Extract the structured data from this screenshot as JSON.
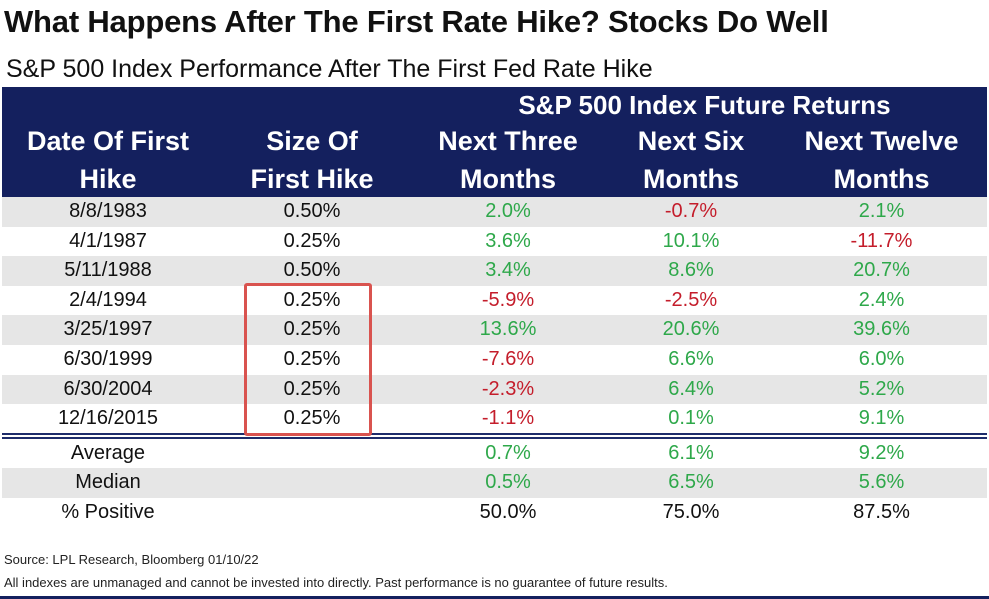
{
  "title": "What Happens After The First Rate Hike? Stocks Do Well",
  "subtitle": "S&P 500 Index Performance After The First Fed Rate Hike",
  "header": {
    "group_label": "S&P 500 Index Future Returns",
    "columns": [
      {
        "line1": "Date Of First",
        "line2": "Hike"
      },
      {
        "line1": "Size Of",
        "line2": "First Hike"
      },
      {
        "line1": "Next Three",
        "line2": "Months"
      },
      {
        "line1": "Next Six",
        "line2": "Months"
      },
      {
        "line1": "Next Twelve",
        "line2": "Months"
      }
    ]
  },
  "colors": {
    "positive": "#2ea84a",
    "negative": "#c41d2b",
    "neutral": "#111111",
    "header_bg": "#14205e",
    "highlight": "#d9534f"
  },
  "chart_data": {
    "type": "table",
    "title": "What Happens After The First Rate Hike? Stocks Do Well",
    "subtitle": "S&P 500 Index Performance After The First Fed Rate Hike",
    "rows": [
      {
        "date": "8/8/1983",
        "size": "0.50%",
        "three": "2.0%",
        "six": "-0.7%",
        "twelve": "2.1%"
      },
      {
        "date": "4/1/1987",
        "size": "0.25%",
        "three": "3.6%",
        "six": "10.1%",
        "twelve": "-11.7%"
      },
      {
        "date": "5/11/1988",
        "size": "0.50%",
        "three": "3.4%",
        "six": "8.6%",
        "twelve": "20.7%"
      },
      {
        "date": "2/4/1994",
        "size": "0.25%",
        "three": "-5.9%",
        "six": "-2.5%",
        "twelve": "2.4%"
      },
      {
        "date": "3/25/1997",
        "size": "0.25%",
        "three": "13.6%",
        "six": "20.6%",
        "twelve": "39.6%"
      },
      {
        "date": "6/30/1999",
        "size": "0.25%",
        "three": "-7.6%",
        "six": "6.6%",
        "twelve": "6.0%"
      },
      {
        "date": "6/30/2004",
        "size": "0.25%",
        "three": "-2.3%",
        "six": "6.4%",
        "twelve": "5.2%"
      },
      {
        "date": "12/16/2015",
        "size": "0.25%",
        "three": "-1.1%",
        "six": "0.1%",
        "twelve": "9.1%"
      }
    ],
    "summary": [
      {
        "label": "Average",
        "three": "0.7%",
        "six": "6.1%",
        "twelve": "9.2%",
        "colored": true
      },
      {
        "label": "Median",
        "three": "0.5%",
        "six": "6.5%",
        "twelve": "5.6%",
        "colored": true
      },
      {
        "label": "% Positive",
        "three": "50.0%",
        "six": "75.0%",
        "twelve": "87.5%",
        "colored": false
      }
    ]
  },
  "footer": {
    "source": "Source: LPL Research, Bloomberg 01/10/22",
    "disclaimer": "All indexes are unmanaged and cannot be invested into directly. Past performance is no guarantee of future results."
  }
}
